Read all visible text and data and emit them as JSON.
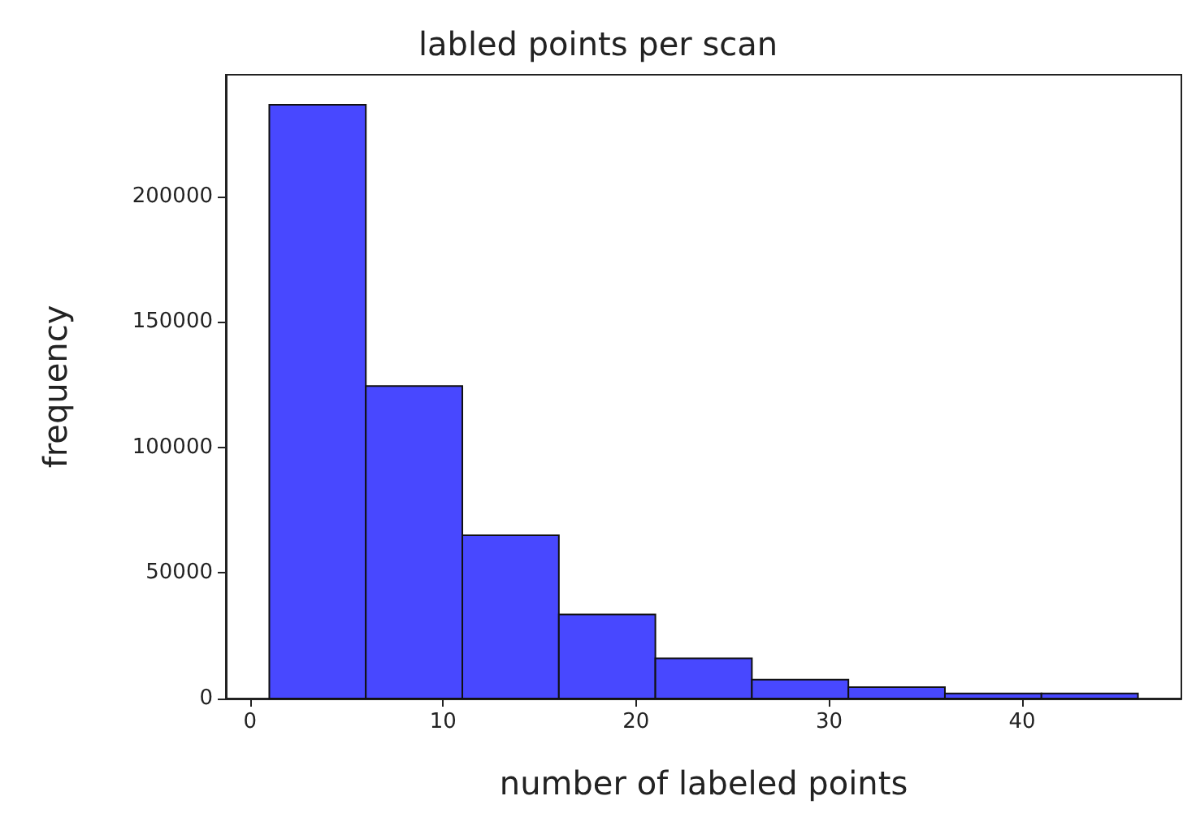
{
  "chart_data": {
    "type": "histogram",
    "title": "labled points per scan",
    "xlabel": "number of labeled points",
    "ylabel": "frequency",
    "bins": [
      1,
      6,
      11,
      16,
      21,
      26,
      31,
      36,
      41,
      46
    ],
    "values": [
      236500,
      124500,
      65000,
      33500,
      16000,
      7500,
      4500,
      2000,
      2000
    ],
    "color": "#4848ff",
    "xlim": [
      -1.25,
      48.25
    ],
    "xticks": [
      0,
      10,
      20,
      30,
      40
    ],
    "ylim": [
      0,
      248500
    ],
    "yticks": [
      0,
      50000,
      100000,
      150000,
      200000
    ]
  }
}
